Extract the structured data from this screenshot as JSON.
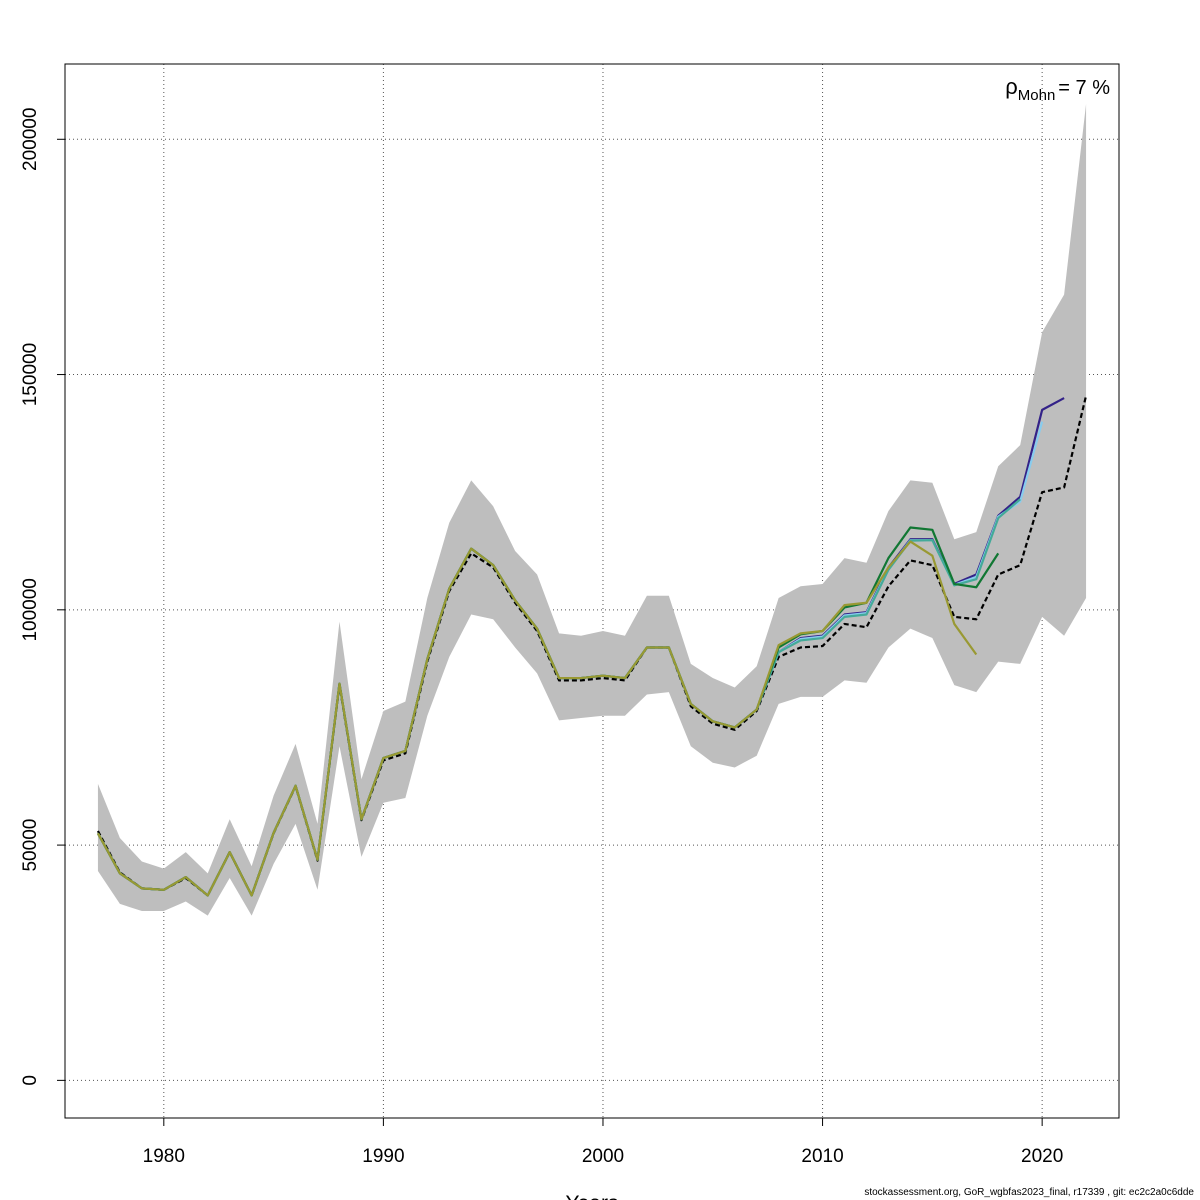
{
  "chart_data": {
    "type": "line",
    "xlabel": "Years",
    "ylabel": "",
    "xlim": [
      1975.5,
      2023.5
    ],
    "ylim": [
      -8000,
      216000
    ],
    "xticks": [
      1980,
      1990,
      2000,
      2010,
      2020
    ],
    "yticks": [
      0,
      50000,
      100000,
      150000,
      200000
    ],
    "grid": true,
    "annotation": {
      "symbol": "ρ",
      "subscript": "Mohn",
      "value": "= 7 %"
    },
    "band": {
      "x": [
        1977,
        1978,
        1979,
        1980,
        1981,
        1982,
        1983,
        1984,
        1985,
        1986,
        1987,
        1988,
        1989,
        1990,
        1991,
        1992,
        1993,
        1994,
        1995,
        1996,
        1997,
        1998,
        1999,
        2000,
        2001,
        2002,
        2003,
        2004,
        2005,
        2006,
        2007,
        2008,
        2009,
        2010,
        2011,
        2012,
        2013,
        2014,
        2015,
        2016,
        2017,
        2018,
        2019,
        2020,
        2021,
        2022
      ],
      "lower": [
        44500,
        37500,
        36000,
        36000,
        38000,
        35000,
        43000,
        35000,
        46000,
        54500,
        40500,
        71000,
        47500,
        59000,
        60000,
        77500,
        90000,
        99000,
        98000,
        92000,
        86500,
        76500,
        77000,
        77500,
        77500,
        82000,
        82500,
        71000,
        67500,
        66500,
        69000,
        80000,
        81500,
        81500,
        85000,
        84500,
        92000,
        96000,
        94000,
        84000,
        82500,
        89000,
        88500,
        98500,
        94500,
        102500
      ],
      "upper": [
        63000,
        51500,
        46500,
        45000,
        48500,
        44000,
        55500,
        45500,
        60500,
        71500,
        54500,
        97500,
        64000,
        78500,
        80500,
        102500,
        118500,
        127500,
        122000,
        112500,
        107500,
        95000,
        94500,
        95500,
        94500,
        103000,
        103000,
        88500,
        85500,
        83500,
        88000,
        102500,
        105000,
        105500,
        111000,
        110000,
        121000,
        127500,
        127000,
        115000,
        116500,
        130500,
        135000,
        159000,
        167000,
        207500
      ]
    },
    "series": [
      {
        "name": "",
        "color": "#000000",
        "dashed": true,
        "x": [
          1977,
          1978,
          1979,
          1980,
          1981,
          1982,
          1983,
          1984,
          1985,
          1986,
          1987,
          1988,
          1989,
          1990,
          1991,
          1992,
          1993,
          1994,
          1995,
          1996,
          1997,
          1998,
          1999,
          2000,
          2001,
          2002,
          2003,
          2004,
          2005,
          2006,
          2007,
          2008,
          2009,
          2010,
          2011,
          2012,
          2013,
          2014,
          2015,
          2016,
          2017,
          2018,
          2019,
          2020,
          2021,
          2022
        ],
        "values": [
          53000,
          44200,
          40800,
          40500,
          43000,
          39300,
          48500,
          39300,
          52500,
          62500,
          46700,
          84000,
          55300,
          68000,
          69500,
          89000,
          104000,
          112000,
          109000,
          101500,
          95500,
          85000,
          85000,
          85500,
          85000,
          92000,
          92000,
          79500,
          75800,
          74500,
          78500,
          90000,
          92000,
          92300,
          97000,
          96300,
          105000,
          110500,
          109500,
          98500,
          98000,
          107500,
          109500,
          125000,
          126000,
          145500
        ]
      },
      {
        "name": "",
        "color": "#332288",
        "x": [
          1977,
          1978,
          1979,
          1980,
          1981,
          1982,
          1983,
          1984,
          1985,
          1986,
          1987,
          1988,
          1989,
          1990,
          1991,
          1992,
          1993,
          1994,
          1995,
          1996,
          1997,
          1998,
          1999,
          2000,
          2001,
          2002,
          2003,
          2004,
          2005,
          2006,
          2007,
          2008,
          2009,
          2010,
          2011,
          2012,
          2013,
          2014,
          2015,
          2016,
          2017,
          2018,
          2019,
          2020,
          2021
        ],
        "values": [
          52500,
          44000,
          40800,
          40500,
          43200,
          39300,
          48500,
          39300,
          52600,
          62600,
          46900,
          84300,
          55500,
          68500,
          70000,
          89500,
          104500,
          113000,
          109500,
          102000,
          96000,
          85500,
          85500,
          86000,
          85500,
          92000,
          92000,
          80000,
          76300,
          75000,
          78800,
          91000,
          94000,
          94500,
          99000,
          99500,
          109000,
          115000,
          115000,
          105500,
          107500,
          120000,
          124000,
          142500,
          145000
        ]
      },
      {
        "name": "",
        "color": "#88ccee",
        "x": [
          1977,
          1978,
          1979,
          1980,
          1981,
          1982,
          1983,
          1984,
          1985,
          1986,
          1987,
          1988,
          1989,
          1990,
          1991,
          1992,
          1993,
          1994,
          1995,
          1996,
          1997,
          1998,
          1999,
          2000,
          2001,
          2002,
          2003,
          2004,
          2005,
          2006,
          2007,
          2008,
          2009,
          2010,
          2011,
          2012,
          2013,
          2014,
          2015,
          2016,
          2017,
          2018,
          2019,
          2020
        ],
        "values": [
          52500,
          44000,
          40800,
          40500,
          43200,
          39300,
          48500,
          39300,
          52600,
          62600,
          46900,
          84300,
          55500,
          68500,
          70000,
          89500,
          104500,
          113000,
          109500,
          102000,
          96000,
          85500,
          85500,
          86000,
          85500,
          92000,
          92000,
          80000,
          76300,
          75000,
          78800,
          91000,
          93800,
          94300,
          98800,
          99300,
          108700,
          114800,
          114800,
          105300,
          107000,
          119800,
          123000,
          140000
        ]
      },
      {
        "name": "",
        "color": "#44aa99",
        "x": [
          1977,
          1978,
          1979,
          1980,
          1981,
          1982,
          1983,
          1984,
          1985,
          1986,
          1987,
          1988,
          1989,
          1990,
          1991,
          1992,
          1993,
          1994,
          1995,
          1996,
          1997,
          1998,
          1999,
          2000,
          2001,
          2002,
          2003,
          2004,
          2005,
          2006,
          2007,
          2008,
          2009,
          2010,
          2011,
          2012,
          2013,
          2014,
          2015,
          2016,
          2017,
          2018,
          2019
        ],
        "values": [
          52500,
          44000,
          40800,
          40500,
          43200,
          39300,
          48500,
          39300,
          52600,
          62600,
          46900,
          84300,
          55500,
          68500,
          70000,
          89500,
          104500,
          113000,
          109500,
          102000,
          96000,
          85500,
          85500,
          86000,
          85500,
          92000,
          92000,
          80000,
          76300,
          75000,
          78800,
          91000,
          93500,
          94000,
          98500,
          99000,
          108500,
          114700,
          114800,
          105200,
          106500,
          119500,
          123500
        ]
      },
      {
        "name": "",
        "color": "#117733",
        "x": [
          1977,
          1978,
          1979,
          1980,
          1981,
          1982,
          1983,
          1984,
          1985,
          1986,
          1987,
          1988,
          1989,
          1990,
          1991,
          1992,
          1993,
          1994,
          1995,
          1996,
          1997,
          1998,
          1999,
          2000,
          2001,
          2002,
          2003,
          2004,
          2005,
          2006,
          2007,
          2008,
          2009,
          2010,
          2011,
          2012,
          2013,
          2014,
          2015,
          2016,
          2017,
          2018
        ],
        "values": [
          52500,
          44000,
          40800,
          40500,
          43200,
          39300,
          48500,
          39300,
          52600,
          62600,
          46900,
          84300,
          55500,
          68500,
          70000,
          89500,
          104500,
          113000,
          109500,
          102000,
          96000,
          85500,
          85500,
          86000,
          85500,
          92000,
          92000,
          80000,
          76300,
          75000,
          78800,
          92000,
          94800,
          95500,
          100500,
          101500,
          111000,
          117500,
          117000,
          105500,
          104800,
          112000
        ]
      },
      {
        "name": "",
        "color": "#999933",
        "x": [
          1977,
          1978,
          1979,
          1980,
          1981,
          1982,
          1983,
          1984,
          1985,
          1986,
          1987,
          1988,
          1989,
          1990,
          1991,
          1992,
          1993,
          1994,
          1995,
          1996,
          1997,
          1998,
          1999,
          2000,
          2001,
          2002,
          2003,
          2004,
          2005,
          2006,
          2007,
          2008,
          2009,
          2010,
          2011,
          2012,
          2013,
          2014,
          2015,
          2016,
          2017
        ],
        "values": [
          52500,
          44000,
          40800,
          40500,
          43200,
          39300,
          48500,
          39300,
          52600,
          62600,
          46900,
          84300,
          55500,
          68500,
          70000,
          89500,
          104500,
          113000,
          109500,
          102000,
          96000,
          85500,
          85500,
          86000,
          85500,
          92000,
          92000,
          80000,
          76300,
          75000,
          78800,
          92500,
          95000,
          95500,
          101000,
          101500,
          109000,
          114500,
          111500,
          97000,
          90500
        ]
      }
    ]
  },
  "footer": "stockassessment.org, GoR_wgbfas2023_final, r17339 , git: ec2c2a0c6dde"
}
